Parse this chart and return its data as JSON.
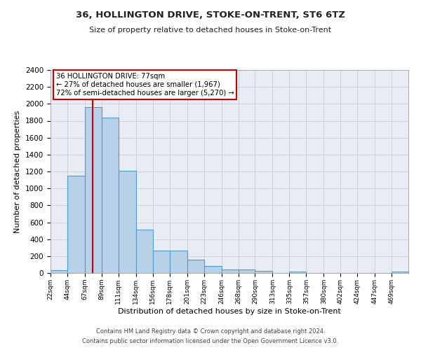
{
  "title": "36, HOLLINGTON DRIVE, STOKE-ON-TRENT, ST6 6TZ",
  "subtitle": "Size of property relative to detached houses in Stoke-on-Trent",
  "xlabel": "Distribution of detached houses by size in Stoke-on-Trent",
  "ylabel": "Number of detached properties",
  "bin_edges": [
    22,
    44,
    67,
    89,
    111,
    134,
    156,
    178,
    201,
    223,
    246,
    268,
    290,
    313,
    335,
    357,
    380,
    402,
    424,
    447,
    469,
    491
  ],
  "bar_heights": [
    30,
    1150,
    1960,
    1840,
    1210,
    510,
    265,
    265,
    155,
    80,
    45,
    45,
    25,
    0,
    18,
    0,
    0,
    0,
    0,
    0,
    20
  ],
  "bar_color": "#b8d0e8",
  "bar_edge_color": "#5599cc",
  "red_line_x": 77,
  "annotation_title": "36 HOLLINGTON DRIVE: 77sqm",
  "annotation_line1": "← 27% of detached houses are smaller (1,967)",
  "annotation_line2": "72% of semi-detached houses are larger (5,270) →",
  "annotation_box_color": "#ffffff",
  "annotation_border_color": "#cc0000",
  "red_line_color": "#cc0000",
  "ylim": [
    0,
    2400
  ],
  "yticks": [
    0,
    200,
    400,
    600,
    800,
    1000,
    1200,
    1400,
    1600,
    1800,
    2000,
    2200,
    2400
  ],
  "grid_color": "#cccccc",
  "bg_color": "#e8edf5",
  "footer_line1": "Contains HM Land Registry data © Crown copyright and database right 2024.",
  "footer_line2": "Contains public sector information licensed under the Open Government Licence v3.0."
}
